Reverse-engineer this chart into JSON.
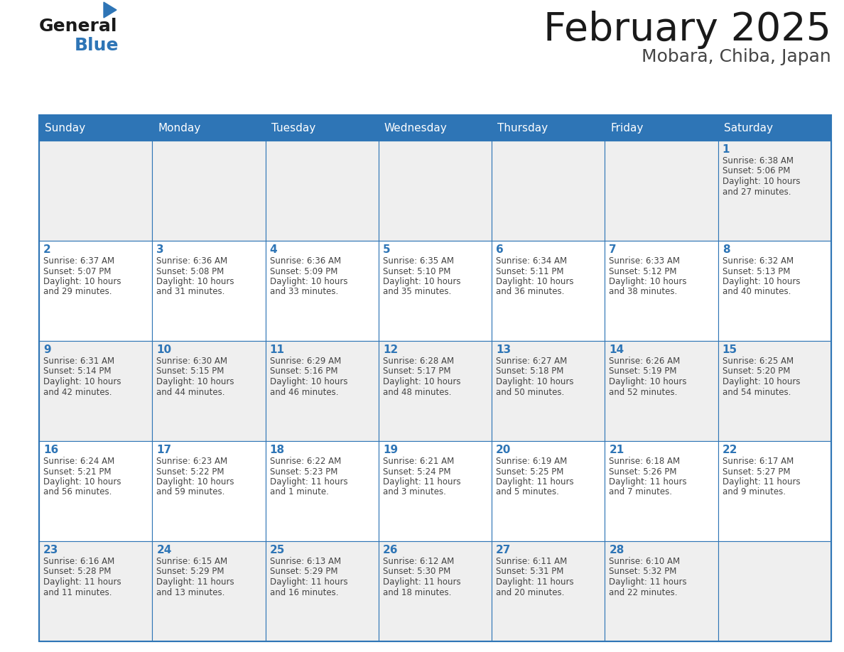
{
  "title": "February 2025",
  "subtitle": "Mobara, Chiba, Japan",
  "days_of_week": [
    "Sunday",
    "Monday",
    "Tuesday",
    "Wednesday",
    "Thursday",
    "Friday",
    "Saturday"
  ],
  "header_bg": "#2E75B6",
  "header_text_color": "#FFFFFF",
  "cell_bg_light": "#EFEFEF",
  "cell_bg_white": "#FFFFFF",
  "cell_border_color": "#2E75B6",
  "day_number_color": "#2E75B6",
  "detail_text_color": "#444444",
  "title_color": "#1a1a1a",
  "subtitle_color": "#444444",
  "logo_general_color": "#1a1a1a",
  "logo_blue_color": "#2E75B6",
  "weeks": [
    [
      {
        "day": null,
        "details": ""
      },
      {
        "day": null,
        "details": ""
      },
      {
        "day": null,
        "details": ""
      },
      {
        "day": null,
        "details": ""
      },
      {
        "day": null,
        "details": ""
      },
      {
        "day": null,
        "details": ""
      },
      {
        "day": 1,
        "details": "Sunrise: 6:38 AM\nSunset: 5:06 PM\nDaylight: 10 hours\nand 27 minutes."
      }
    ],
    [
      {
        "day": 2,
        "details": "Sunrise: 6:37 AM\nSunset: 5:07 PM\nDaylight: 10 hours\nand 29 minutes."
      },
      {
        "day": 3,
        "details": "Sunrise: 6:36 AM\nSunset: 5:08 PM\nDaylight: 10 hours\nand 31 minutes."
      },
      {
        "day": 4,
        "details": "Sunrise: 6:36 AM\nSunset: 5:09 PM\nDaylight: 10 hours\nand 33 minutes."
      },
      {
        "day": 5,
        "details": "Sunrise: 6:35 AM\nSunset: 5:10 PM\nDaylight: 10 hours\nand 35 minutes."
      },
      {
        "day": 6,
        "details": "Sunrise: 6:34 AM\nSunset: 5:11 PM\nDaylight: 10 hours\nand 36 minutes."
      },
      {
        "day": 7,
        "details": "Sunrise: 6:33 AM\nSunset: 5:12 PM\nDaylight: 10 hours\nand 38 minutes."
      },
      {
        "day": 8,
        "details": "Sunrise: 6:32 AM\nSunset: 5:13 PM\nDaylight: 10 hours\nand 40 minutes."
      }
    ],
    [
      {
        "day": 9,
        "details": "Sunrise: 6:31 AM\nSunset: 5:14 PM\nDaylight: 10 hours\nand 42 minutes."
      },
      {
        "day": 10,
        "details": "Sunrise: 6:30 AM\nSunset: 5:15 PM\nDaylight: 10 hours\nand 44 minutes."
      },
      {
        "day": 11,
        "details": "Sunrise: 6:29 AM\nSunset: 5:16 PM\nDaylight: 10 hours\nand 46 minutes."
      },
      {
        "day": 12,
        "details": "Sunrise: 6:28 AM\nSunset: 5:17 PM\nDaylight: 10 hours\nand 48 minutes."
      },
      {
        "day": 13,
        "details": "Sunrise: 6:27 AM\nSunset: 5:18 PM\nDaylight: 10 hours\nand 50 minutes."
      },
      {
        "day": 14,
        "details": "Sunrise: 6:26 AM\nSunset: 5:19 PM\nDaylight: 10 hours\nand 52 minutes."
      },
      {
        "day": 15,
        "details": "Sunrise: 6:25 AM\nSunset: 5:20 PM\nDaylight: 10 hours\nand 54 minutes."
      }
    ],
    [
      {
        "day": 16,
        "details": "Sunrise: 6:24 AM\nSunset: 5:21 PM\nDaylight: 10 hours\nand 56 minutes."
      },
      {
        "day": 17,
        "details": "Sunrise: 6:23 AM\nSunset: 5:22 PM\nDaylight: 10 hours\nand 59 minutes."
      },
      {
        "day": 18,
        "details": "Sunrise: 6:22 AM\nSunset: 5:23 PM\nDaylight: 11 hours\nand 1 minute."
      },
      {
        "day": 19,
        "details": "Sunrise: 6:21 AM\nSunset: 5:24 PM\nDaylight: 11 hours\nand 3 minutes."
      },
      {
        "day": 20,
        "details": "Sunrise: 6:19 AM\nSunset: 5:25 PM\nDaylight: 11 hours\nand 5 minutes."
      },
      {
        "day": 21,
        "details": "Sunrise: 6:18 AM\nSunset: 5:26 PM\nDaylight: 11 hours\nand 7 minutes."
      },
      {
        "day": 22,
        "details": "Sunrise: 6:17 AM\nSunset: 5:27 PM\nDaylight: 11 hours\nand 9 minutes."
      }
    ],
    [
      {
        "day": 23,
        "details": "Sunrise: 6:16 AM\nSunset: 5:28 PM\nDaylight: 11 hours\nand 11 minutes."
      },
      {
        "day": 24,
        "details": "Sunrise: 6:15 AM\nSunset: 5:29 PM\nDaylight: 11 hours\nand 13 minutes."
      },
      {
        "day": 25,
        "details": "Sunrise: 6:13 AM\nSunset: 5:29 PM\nDaylight: 11 hours\nand 16 minutes."
      },
      {
        "day": 26,
        "details": "Sunrise: 6:12 AM\nSunset: 5:30 PM\nDaylight: 11 hours\nand 18 minutes."
      },
      {
        "day": 27,
        "details": "Sunrise: 6:11 AM\nSunset: 5:31 PM\nDaylight: 11 hours\nand 20 minutes."
      },
      {
        "day": 28,
        "details": "Sunrise: 6:10 AM\nSunset: 5:32 PM\nDaylight: 11 hours\nand 22 minutes."
      },
      {
        "day": null,
        "details": ""
      }
    ]
  ]
}
